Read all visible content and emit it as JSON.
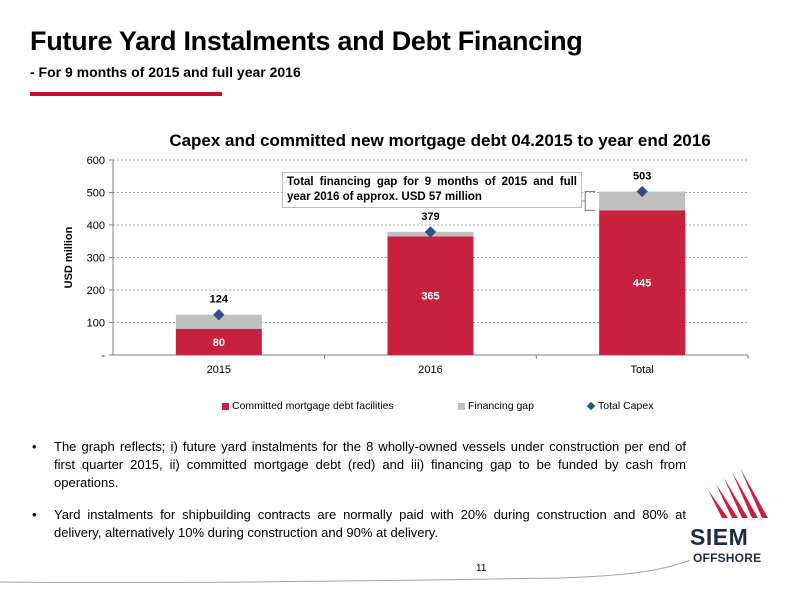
{
  "slide": {
    "title": "Future Yard Instalments and Debt Financing",
    "subtitle": "- For 9 months of 2015 and full year 2016",
    "page_number": "11"
  },
  "callout": {
    "text": "Total financing gap for 9 months of 2015 and full year 2016 of approx. USD 57 million"
  },
  "bullets": [
    "The graph reflects; i) future yard instalments for the 8 wholly-owned vessels under construction per end of first quarter 2015, ii) committed mortgage debt (red) and iii) financing gap to be funded by cash from operations.",
    "Yard instalments for shipbuilding contracts are normally paid with 20% during construction and 80% at delivery, alternatively 10% during construction and 90% at delivery."
  ],
  "logo": {
    "line1": "SIEM",
    "line2": "OFFSHORE"
  },
  "chart_data": {
    "type": "bar",
    "stacked": true,
    "title": "Capex and committed new mortgage debt 04.2015 to year end 2016",
    "xlabel": "",
    "ylabel": "USD million",
    "categories": [
      "2015",
      "2016",
      "Total"
    ],
    "ylim": [
      0,
      600
    ],
    "yticks": [
      0,
      100,
      200,
      300,
      400,
      500,
      600
    ],
    "ytick_labels": [
      "-",
      "100",
      "200",
      "300",
      "400",
      "500",
      "600"
    ],
    "grid": true,
    "legend_position": "bottom",
    "series": [
      {
        "name": "Committed mortgage debt facilities",
        "kind": "bar",
        "color": "#c8213e",
        "values": [
          80,
          365,
          445
        ],
        "labels": [
          "80",
          "365",
          "445"
        ]
      },
      {
        "name": "Financing gap",
        "kind": "bar",
        "color": "#bfbfbf",
        "values": [
          44,
          14,
          58
        ]
      },
      {
        "name": "Total Capex",
        "kind": "marker",
        "color": "#2e4f8c",
        "values": [
          124,
          379,
          503
        ],
        "labels": [
          "124",
          "379",
          "503"
        ]
      }
    ]
  },
  "colors": {
    "accent": "#c8102e",
    "brand_dark": "#1f2a44"
  }
}
